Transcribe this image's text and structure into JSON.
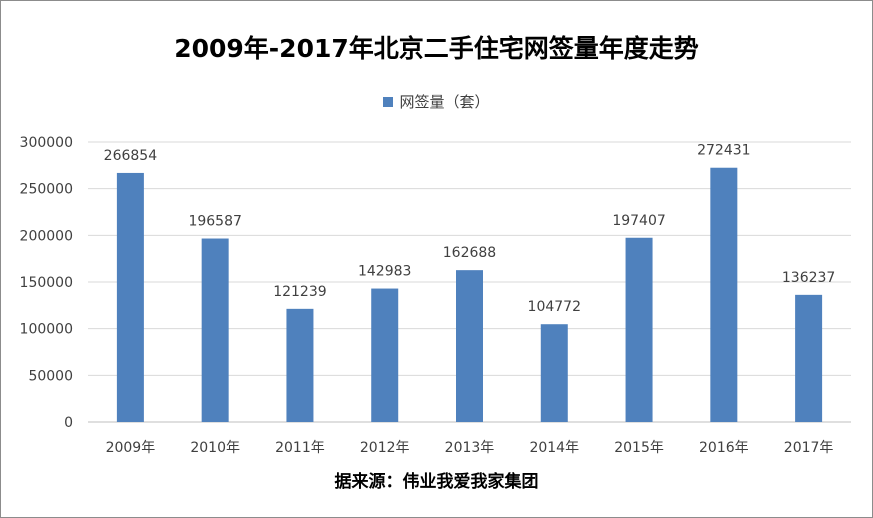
{
  "chart_data": {
    "type": "bar",
    "title": "2009年-2017年北京二手住宅网签量年度走势",
    "categories": [
      "2009年",
      "2010年",
      "2011年",
      "2012年",
      "2013年",
      "2014年",
      "2015年",
      "2016年",
      "2017年"
    ],
    "series": [
      {
        "name": "网签量（套）",
        "values": [
          266854,
          196587,
          121239,
          142983,
          162688,
          104772,
          197407,
          272431,
          136237
        ]
      }
    ],
    "data_labels": [
      "266854",
      "196587",
      "121239",
      "142983",
      "162688",
      "104772",
      "197407",
      "272431",
      "136237"
    ],
    "y_ticks": [
      "0",
      "50000",
      "100000",
      "150000",
      "200000",
      "250000",
      "300000"
    ],
    "ylim": [
      0,
      300000
    ],
    "grid": true,
    "legend": "top-center",
    "xlabel": "",
    "ylabel": "",
    "bar_color": "#4f81bd"
  },
  "source_note": "据来源：伟业我爱我家集团"
}
